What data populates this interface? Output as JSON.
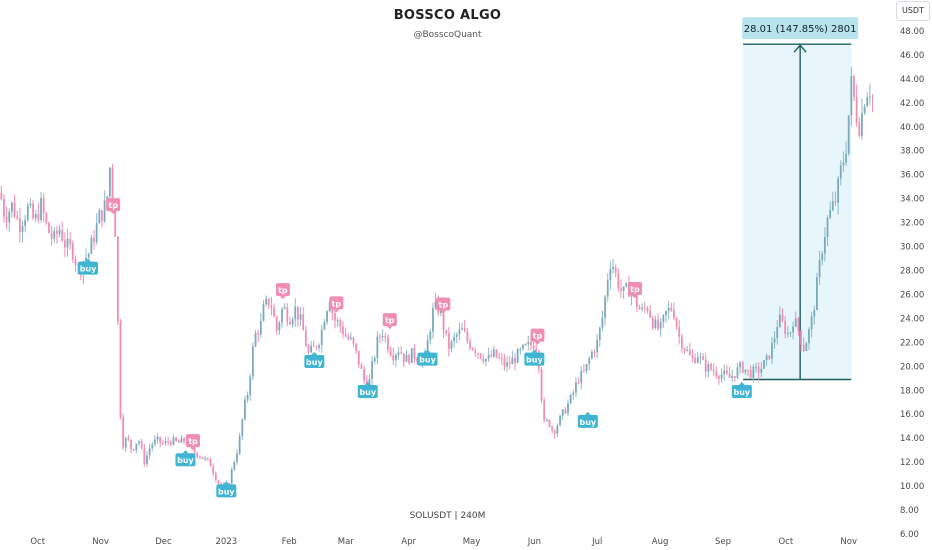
{
  "header": {
    "title": "BOSSCO ALGO",
    "subtitle": "@BosscoQuant",
    "currency": "USDT"
  },
  "footer": {
    "symbol": "SOLUSDT | 240M"
  },
  "colors": {
    "up": "#26a69a",
    "down": "#ef5350",
    "wick": "#8fb8c8",
    "buy": "#3fb5d3",
    "tp": "#f08db3",
    "measure": "#1e5c66",
    "measure_fill": "#e6f6fa",
    "measure_label_bg": "#b8e2ec"
  },
  "chart_data": {
    "type": "line",
    "ylim": [
      6,
      49
    ],
    "y_ticks": [
      "6.00",
      "8.00",
      "10.00",
      "12.00",
      "14.00",
      "16.00",
      "18.00",
      "20.00",
      "22.00",
      "24.00",
      "26.00",
      "28.00",
      "30.00",
      "32.00",
      "34.00",
      "36.00",
      "38.00",
      "40.00",
      "42.00",
      "44.00",
      "46.00",
      "48.00"
    ],
    "x_ticks": [
      {
        "label": "Oct",
        "t": 0.6
      },
      {
        "label": "Nov",
        "t": 1.6
      },
      {
        "label": "Dec",
        "t": 2.6
      },
      {
        "label": "2023",
        "t": 3.6
      },
      {
        "label": "Feb",
        "t": 4.6
      },
      {
        "label": "Mar",
        "t": 5.5
      },
      {
        "label": "Apr",
        "t": 6.5
      },
      {
        "label": "May",
        "t": 7.5
      },
      {
        "label": "Jun",
        "t": 8.5
      },
      {
        "label": "Jul",
        "t": 9.5
      },
      {
        "label": "Aug",
        "t": 10.5
      },
      {
        "label": "Sep",
        "t": 11.5
      },
      {
        "label": "Oct",
        "t": 12.5
      },
      {
        "label": "Nov",
        "t": 13.5
      }
    ],
    "x_range": [
      0,
      13.95
    ],
    "series": [
      {
        "values": [
          [
            0.0,
            34.5
          ],
          [
            0.08,
            32.5
          ],
          [
            0.2,
            33.5
          ],
          [
            0.3,
            31.8
          ],
          [
            0.45,
            33.2
          ],
          [
            0.55,
            32.0
          ],
          [
            0.65,
            33.5
          ],
          [
            0.75,
            31.5
          ],
          [
            0.85,
            30.5
          ],
          [
            0.95,
            31.5
          ],
          [
            1.05,
            30.0
          ],
          [
            1.15,
            29.8
          ],
          [
            1.25,
            28.0
          ],
          [
            1.32,
            28.8
          ],
          [
            1.42,
            29.5
          ],
          [
            1.5,
            31.0
          ],
          [
            1.58,
            32.5
          ],
          [
            1.65,
            33.0
          ],
          [
            1.72,
            34.5
          ],
          [
            1.76,
            37.5
          ],
          [
            1.8,
            33.0
          ],
          [
            1.85,
            30.5
          ],
          [
            1.88,
            22.0
          ],
          [
            1.92,
            15.5
          ],
          [
            1.96,
            13.5
          ],
          [
            2.02,
            14.0
          ],
          [
            2.1,
            13.0
          ],
          [
            2.2,
            14.0
          ],
          [
            2.3,
            12.0
          ],
          [
            2.4,
            13.5
          ],
          [
            2.5,
            13.8
          ],
          [
            2.6,
            13.5
          ],
          [
            2.7,
            13.8
          ],
          [
            2.85,
            13.6
          ],
          [
            2.95,
            13.9
          ],
          [
            3.05,
            13.0
          ],
          [
            3.2,
            12.5
          ],
          [
            3.35,
            11.8
          ],
          [
            3.45,
            10.5
          ],
          [
            3.52,
            10.0
          ],
          [
            3.58,
            9.8
          ],
          [
            3.65,
            10.5
          ],
          [
            3.72,
            12.0
          ],
          [
            3.8,
            13.5
          ],
          [
            3.88,
            16.5
          ],
          [
            3.95,
            18.0
          ],
          [
            4.0,
            20.5
          ],
          [
            4.05,
            22.5
          ],
          [
            4.15,
            23.5
          ],
          [
            4.2,
            25.0
          ],
          [
            4.3,
            25.5
          ],
          [
            4.4,
            23.0
          ],
          [
            4.5,
            25.0
          ],
          [
            4.6,
            24.0
          ],
          [
            4.7,
            24.8
          ],
          [
            4.8,
            23.5
          ],
          [
            4.9,
            21.0
          ],
          [
            5.0,
            21.5
          ],
          [
            5.1,
            22.5
          ],
          [
            5.15,
            24.0
          ],
          [
            5.2,
            25.0
          ],
          [
            5.25,
            26.0
          ],
          [
            5.3,
            24.0
          ],
          [
            5.4,
            23.5
          ],
          [
            5.5,
            22.5
          ],
          [
            5.6,
            22.0
          ],
          [
            5.7,
            20.5
          ],
          [
            5.78,
            19.0
          ],
          [
            5.85,
            18.0
          ],
          [
            5.92,
            20.0
          ],
          [
            6.0,
            22.0
          ],
          [
            6.08,
            23.0
          ],
          [
            6.15,
            22.0
          ],
          [
            6.25,
            21.0
          ],
          [
            6.35,
            21.5
          ],
          [
            6.45,
            20.5
          ],
          [
            6.55,
            21.0
          ],
          [
            6.65,
            20.8
          ],
          [
            6.75,
            20.5
          ],
          [
            6.82,
            22.5
          ],
          [
            6.88,
            24.5
          ],
          [
            6.95,
            25.0
          ],
          [
            7.02,
            24.5
          ],
          [
            7.08,
            22.5
          ],
          [
            7.15,
            21.5
          ],
          [
            7.25,
            22.5
          ],
          [
            7.35,
            23.0
          ],
          [
            7.45,
            22.0
          ],
          [
            7.55,
            21.5
          ],
          [
            7.65,
            21.0
          ],
          [
            7.75,
            20.5
          ],
          [
            7.85,
            21.0
          ],
          [
            7.95,
            20.5
          ],
          [
            8.05,
            20.0
          ],
          [
            8.15,
            20.5
          ],
          [
            8.25,
            21.0
          ],
          [
            8.35,
            21.5
          ],
          [
            8.45,
            21.8
          ],
          [
            8.52,
            22.0
          ],
          [
            8.58,
            20.0
          ],
          [
            8.62,
            17.0
          ],
          [
            8.66,
            15.0
          ],
          [
            8.72,
            15.5
          ],
          [
            8.8,
            14.5
          ],
          [
            8.9,
            15.5
          ],
          [
            9.0,
            16.5
          ],
          [
            9.1,
            17.5
          ],
          [
            9.2,
            19.0
          ],
          [
            9.3,
            19.5
          ],
          [
            9.4,
            21.0
          ],
          [
            9.5,
            22.0
          ],
          [
            9.6,
            24.5
          ],
          [
            9.65,
            27.0
          ],
          [
            9.72,
            29.0
          ],
          [
            9.8,
            27.5
          ],
          [
            9.9,
            26.0
          ],
          [
            10.0,
            26.5
          ],
          [
            10.1,
            25.5
          ],
          [
            10.2,
            24.5
          ],
          [
            10.3,
            25.0
          ],
          [
            10.4,
            23.5
          ],
          [
            10.5,
            23.0
          ],
          [
            10.6,
            24.5
          ],
          [
            10.7,
            25.0
          ],
          [
            10.8,
            22.5
          ],
          [
            10.9,
            21.5
          ],
          [
            11.0,
            20.5
          ],
          [
            11.1,
            21.0
          ],
          [
            11.2,
            20.0
          ],
          [
            11.3,
            19.8
          ],
          [
            11.4,
            19.5
          ],
          [
            11.5,
            19.3
          ],
          [
            11.6,
            19.0
          ],
          [
            11.7,
            19.5
          ],
          [
            11.8,
            20.0
          ],
          [
            11.9,
            19.5
          ],
          [
            12.0,
            19.5
          ],
          [
            12.1,
            19.8
          ],
          [
            12.2,
            20.5
          ],
          [
            12.3,
            22.0
          ],
          [
            12.38,
            24.0
          ],
          [
            12.45,
            23.5
          ],
          [
            12.55,
            22.5
          ],
          [
            12.62,
            24.0
          ],
          [
            12.7,
            23.0
          ],
          [
            12.78,
            21.5
          ],
          [
            12.85,
            22.5
          ],
          [
            12.92,
            24.0
          ],
          [
            13.0,
            27.0
          ],
          [
            13.08,
            30.0
          ],
          [
            13.15,
            32.0
          ],
          [
            13.22,
            33.0
          ],
          [
            13.3,
            34.0
          ],
          [
            13.38,
            36.5
          ],
          [
            13.45,
            38.0
          ],
          [
            13.5,
            41.0
          ],
          [
            13.55,
            44.0
          ],
          [
            13.6,
            41.5
          ],
          [
            13.68,
            40.0
          ],
          [
            13.75,
            42.5
          ],
          [
            13.82,
            43.5
          ],
          [
            13.9,
            42.0
          ]
        ]
      }
    ],
    "markers": [
      {
        "type": "tp",
        "label": "tp",
        "t": 1.8,
        "y": 33.5
      },
      {
        "type": "buy",
        "label": "buy",
        "t": 1.4,
        "y": 28.2
      },
      {
        "type": "tp",
        "label": "tp",
        "t": 3.07,
        "y": 13.8
      },
      {
        "type": "buy",
        "label": "buy",
        "t": 2.95,
        "y": 12.2
      },
      {
        "type": "buy",
        "label": "buy",
        "t": 3.6,
        "y": 9.6
      },
      {
        "type": "tp",
        "label": "tp",
        "t": 4.5,
        "y": 26.4
      },
      {
        "type": "buy",
        "label": "buy",
        "t": 5.0,
        "y": 20.4
      },
      {
        "type": "tp",
        "label": "tp",
        "t": 5.35,
        "y": 25.3
      },
      {
        "type": "buy",
        "label": "buy",
        "t": 5.85,
        "y": 17.9
      },
      {
        "type": "tp",
        "label": "tp",
        "t": 6.2,
        "y": 23.9
      },
      {
        "type": "buy",
        "label": "buy",
        "t": 6.8,
        "y": 20.6
      },
      {
        "type": "tp",
        "label": "tp",
        "t": 7.05,
        "y": 25.2
      },
      {
        "type": "tp",
        "label": "tp",
        "t": 8.55,
        "y": 22.6
      },
      {
        "type": "buy",
        "label": "buy",
        "t": 8.5,
        "y": 20.6
      },
      {
        "type": "buy",
        "label": "buy",
        "t": 9.35,
        "y": 15.4
      },
      {
        "type": "tp",
        "label": "tp",
        "t": 10.1,
        "y": 26.5
      },
      {
        "type": "buy",
        "label": "buy",
        "t": 11.8,
        "y": 17.9
      }
    ],
    "measure": {
      "label": "28.01 (147.85%) 2801",
      "t0": 11.82,
      "t1": 13.54,
      "y0": 18.9,
      "y1": 46.9
    }
  }
}
